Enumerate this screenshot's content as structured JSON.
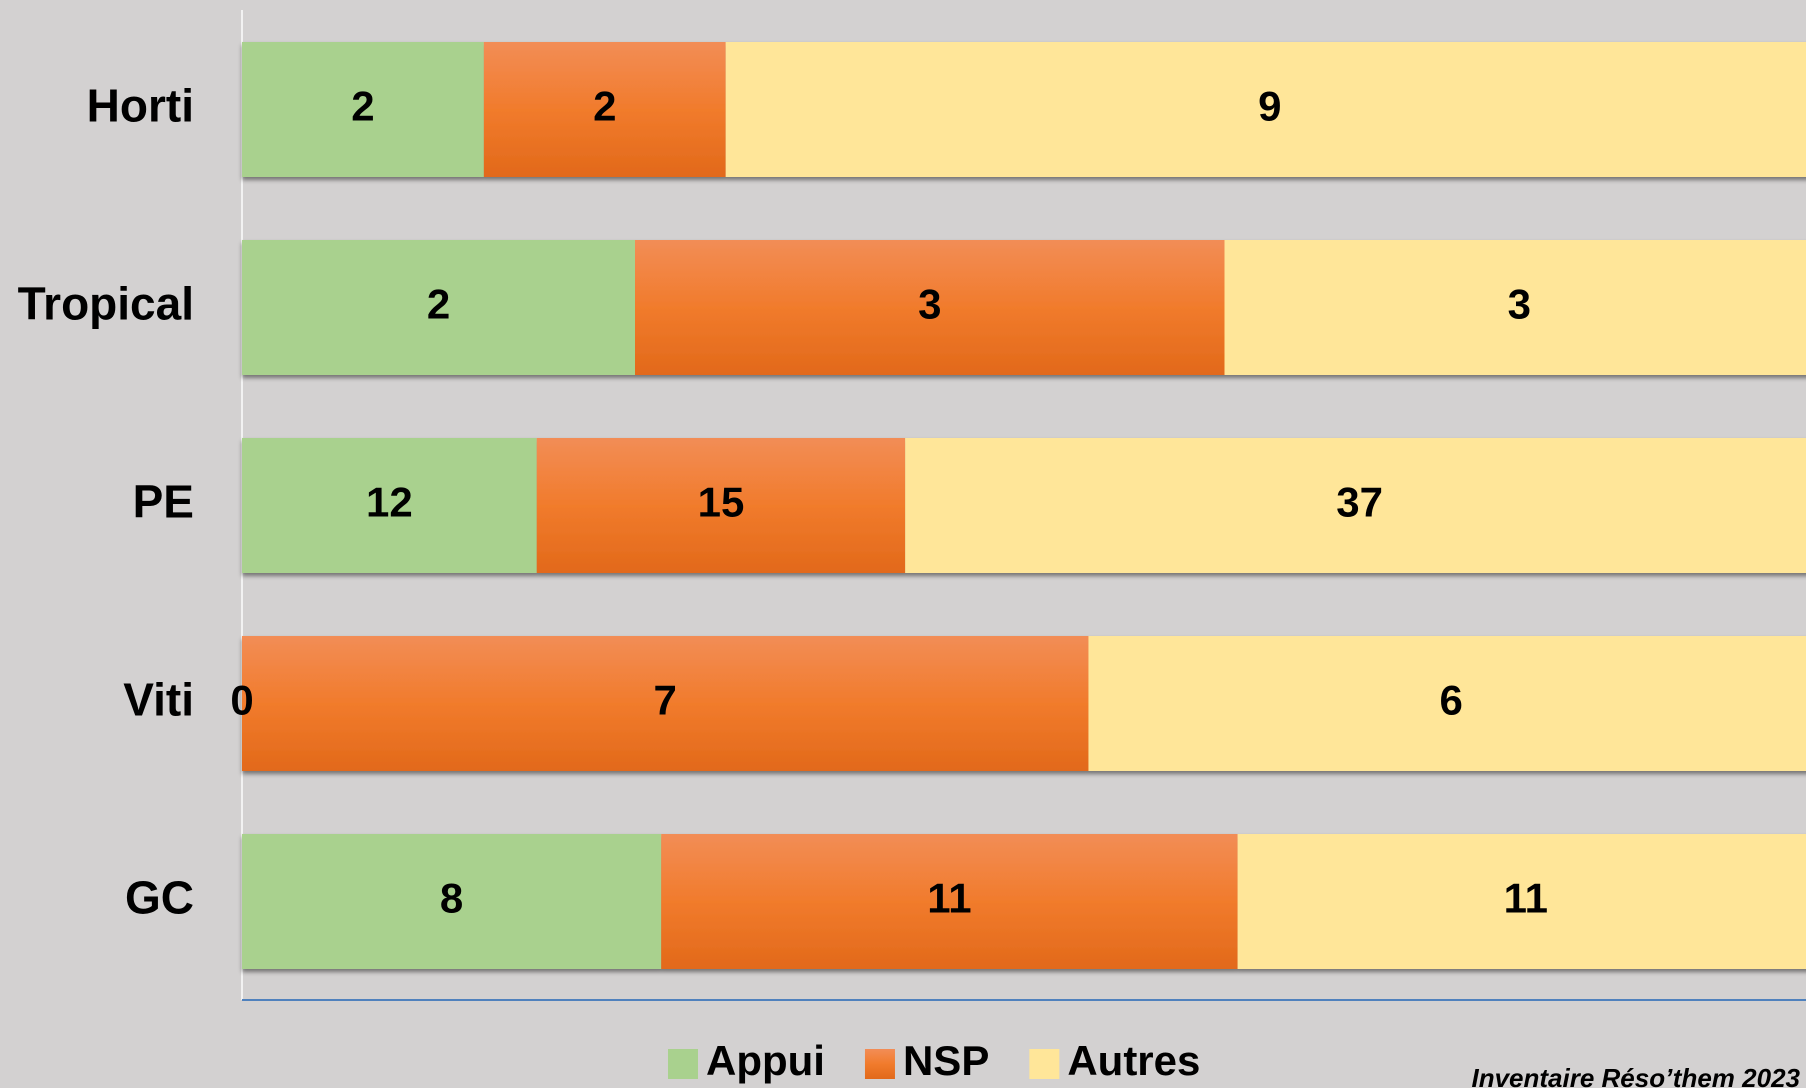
{
  "chart_data": {
    "type": "bar100h",
    "categories": [
      "Horti",
      "Tropical",
      "PE",
      "Viti",
      "GC"
    ],
    "series": [
      {
        "name": "Appui",
        "color": "#a9d18e",
        "values": [
          2,
          2,
          12,
          0,
          8
        ]
      },
      {
        "name": "NSP",
        "color": "#ed7d31",
        "values": [
          2,
          3,
          15,
          7,
          11
        ]
      },
      {
        "name": "Autres",
        "color": "#ffe699",
        "values": [
          9,
          3,
          37,
          6,
          11
        ]
      }
    ],
    "legend": "bottom",
    "caption": "Inventaire Réso’them 2023"
  }
}
